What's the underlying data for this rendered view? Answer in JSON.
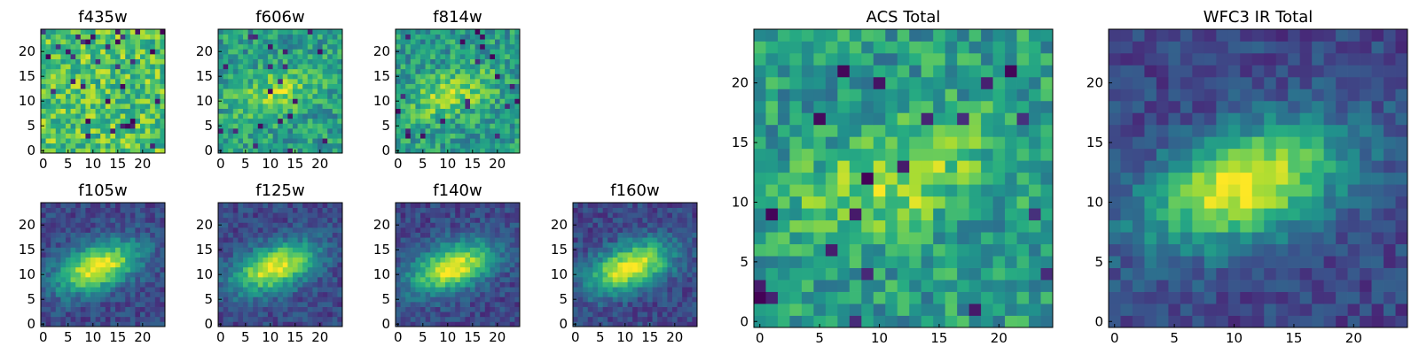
{
  "chart_data": [
    {
      "type": "heatmap",
      "title": "f435w",
      "colormap": "viridis",
      "style": "noise",
      "grid": false,
      "n": 25,
      "xlim": [
        -0.5,
        24.5
      ],
      "ylim": [
        -0.5,
        24.5
      ],
      "xticks": [
        0,
        5,
        10,
        15,
        20
      ],
      "yticks": [
        0,
        5,
        10,
        15,
        20
      ]
    },
    {
      "type": "heatmap",
      "title": "f606w",
      "colormap": "viridis",
      "style": "noisy-blob",
      "grid": false,
      "n": 25,
      "xlim": [
        -0.5,
        24.5
      ],
      "ylim": [
        -0.5,
        24.5
      ],
      "xticks": [
        0,
        5,
        10,
        15,
        20
      ],
      "yticks": [
        0,
        5,
        10,
        15,
        20
      ]
    },
    {
      "type": "heatmap",
      "title": "f814w",
      "colormap": "viridis",
      "style": "noisy-blob",
      "grid": false,
      "n": 25,
      "xlim": [
        -0.5,
        24.5
      ],
      "ylim": [
        -0.5,
        24.5
      ],
      "xticks": [
        0,
        5,
        10,
        15,
        20
      ],
      "yticks": [
        0,
        5,
        10,
        15,
        20
      ]
    },
    {
      "type": "heatmap",
      "title": "f105w",
      "colormap": "viridis",
      "style": "blob",
      "grid": false,
      "n": 25,
      "xlim": [
        -0.5,
        24.5
      ],
      "ylim": [
        -0.5,
        24.5
      ],
      "xticks": [
        0,
        5,
        10,
        15,
        20
      ],
      "yticks": [
        0,
        5,
        10,
        15,
        20
      ]
    },
    {
      "type": "heatmap",
      "title": "f125w",
      "colormap": "viridis",
      "style": "blob",
      "grid": false,
      "n": 25,
      "xlim": [
        -0.5,
        24.5
      ],
      "ylim": [
        -0.5,
        24.5
      ],
      "xticks": [
        0,
        5,
        10,
        15,
        20
      ],
      "yticks": [
        0,
        5,
        10,
        15,
        20
      ]
    },
    {
      "type": "heatmap",
      "title": "f140w",
      "colormap": "viridis",
      "style": "blob",
      "grid": false,
      "n": 25,
      "xlim": [
        -0.5,
        24.5
      ],
      "ylim": [
        -0.5,
        24.5
      ],
      "xticks": [
        0,
        5,
        10,
        15,
        20
      ],
      "yticks": [
        0,
        5,
        10,
        15,
        20
      ]
    },
    {
      "type": "heatmap",
      "title": "f160w",
      "colormap": "viridis",
      "style": "blob",
      "grid": false,
      "n": 25,
      "xlim": [
        -0.5,
        24.5
      ],
      "ylim": [
        -0.5,
        24.5
      ],
      "xticks": [
        0,
        5,
        10,
        15,
        20
      ],
      "yticks": [
        0,
        5,
        10,
        15,
        20
      ]
    },
    {
      "type": "heatmap",
      "title": "ACS Total",
      "colormap": "viridis",
      "style": "noisy-blob",
      "grid": false,
      "n": 25,
      "xlim": [
        -0.5,
        24.5
      ],
      "ylim": [
        -0.5,
        24.5
      ],
      "xticks": [
        0,
        5,
        10,
        15,
        20
      ],
      "yticks": [
        0,
        5,
        10,
        15,
        20
      ]
    },
    {
      "type": "heatmap",
      "title": "WFC3 IR Total",
      "colormap": "viridis",
      "style": "blob",
      "grid": false,
      "n": 25,
      "xlim": [
        -0.5,
        24.5
      ],
      "ylim": [
        -0.5,
        24.5
      ],
      "xticks": [
        0,
        5,
        10,
        15,
        20
      ],
      "yticks": [
        0,
        5,
        10,
        15,
        20
      ]
    }
  ]
}
